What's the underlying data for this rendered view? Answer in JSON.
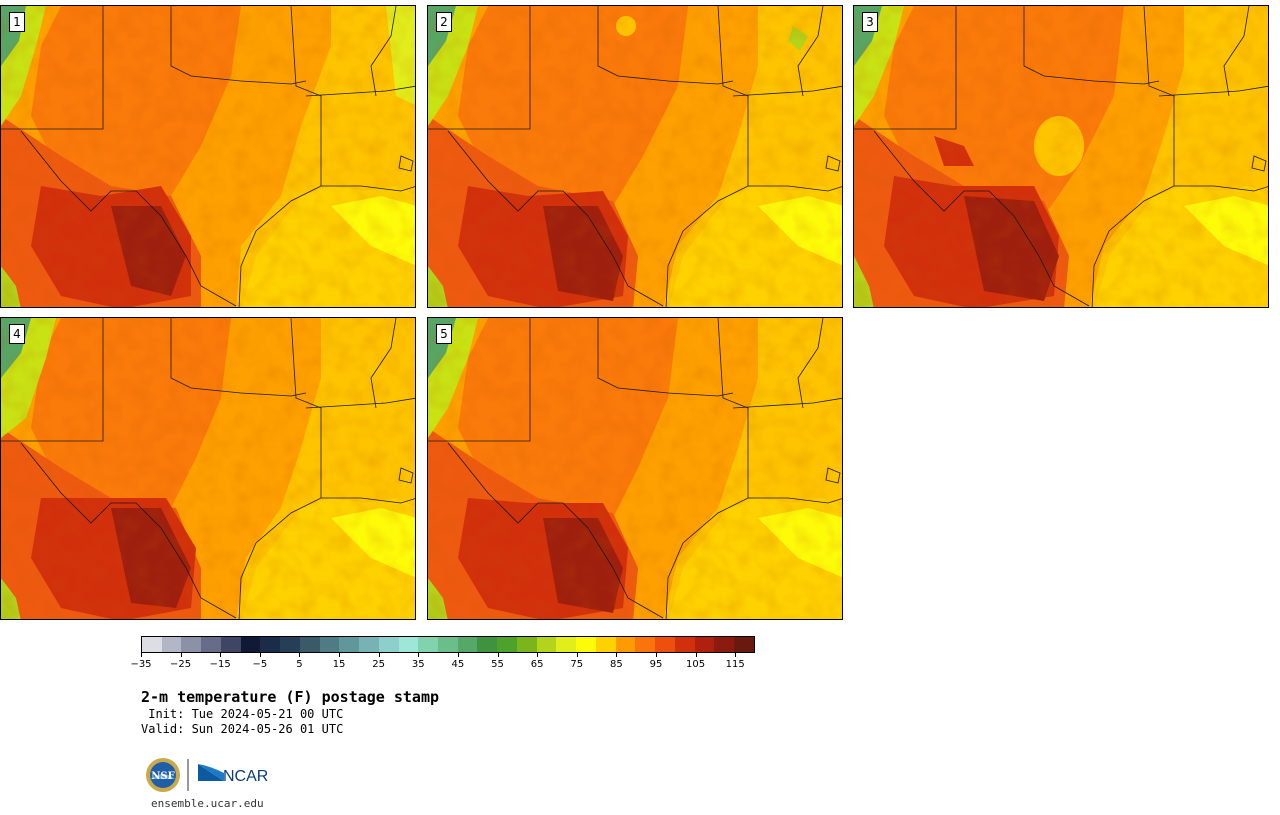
{
  "stamps": [
    {
      "number": "1"
    },
    {
      "number": "2"
    },
    {
      "number": "3"
    },
    {
      "number": "4"
    },
    {
      "number": "5"
    }
  ],
  "colorbar": {
    "colors": [
      "#dcdee4",
      "#b3b6c6",
      "#8d91a7",
      "#676c88",
      "#3f4665",
      "#101935",
      "#1b2b4a",
      "#263e58",
      "#3b5a68",
      "#4f7c84",
      "#61969a",
      "#79b2b4",
      "#8ccfcb",
      "#9ee6d8",
      "#81d3ad",
      "#6bbd8a",
      "#55a868",
      "#3f933f",
      "#4ea12b",
      "#7bb51c",
      "#b3d41a",
      "#e2ee1b",
      "#fefb09",
      "#fed100",
      "#fe9b00",
      "#fa730b",
      "#ee4f0f",
      "#d22f0c",
      "#b0200e",
      "#8b1a0f",
      "#6a190f"
    ],
    "ticks": [
      "−35",
      "−25",
      "−15",
      "−5",
      "5",
      "15",
      "25",
      "35",
      "45",
      "55",
      "65",
      "75",
      "85",
      "95",
      "105",
      "115"
    ]
  },
  "title": "2-m temperature (F) postage stamp",
  "init": " Init: Tue 2024-05-21 00 UTC",
  "valid": "Valid: Sun 2024-05-26 01 UTC",
  "logos": {
    "nsf": "NSF",
    "ncar": "NCAR"
  },
  "url": "ensemble.ucar.edu"
}
